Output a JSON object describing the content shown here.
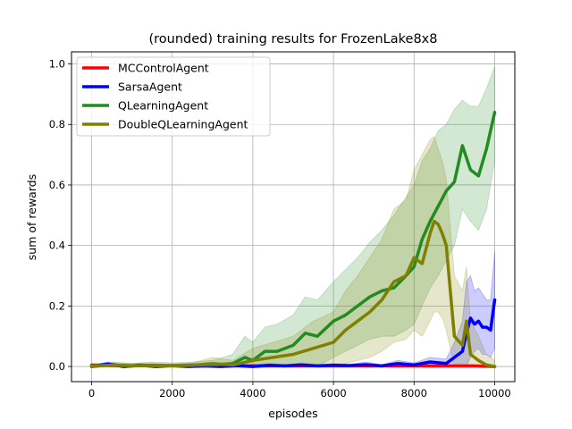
{
  "chart_data": {
    "type": "line",
    "title": "(rounded) training results for FrozenLake8x8",
    "xlabel": "episodes",
    "ylabel": "sum of rewards",
    "xlim": [
      -500,
      10500
    ],
    "ylim": [
      -0.05,
      1.04
    ],
    "xticks": [
      0,
      2000,
      4000,
      6000,
      8000,
      10000
    ],
    "yticks": [
      0.0,
      0.2,
      0.4,
      0.6,
      0.8,
      1.0
    ],
    "xtick_labels": [
      "0",
      "2000",
      "4000",
      "6000",
      "8000",
      "10000"
    ],
    "ytick_labels": [
      "0.0",
      "0.2",
      "0.4",
      "0.6",
      "0.8",
      "1.0"
    ],
    "grid": true,
    "legend_position": "upper-left",
    "series": [
      {
        "name": "MCControlAgent",
        "color": "#ff0000",
        "x": [
          0,
          500,
          1000,
          1500,
          2000,
          2500,
          3000,
          3500,
          4000,
          4500,
          5000,
          5500,
          6000,
          6500,
          7000,
          7500,
          8000,
          8500,
          9000,
          9500,
          10000
        ],
        "y": [
          0.005,
          0.003,
          0.002,
          0.004,
          0.002,
          0.002,
          0.002,
          0.002,
          0.002,
          0.002,
          0.002,
          0.002,
          0.002,
          0.002,
          0.002,
          0.002,
          0.002,
          0.002,
          0.002,
          0.002,
          0.0
        ],
        "upper": [],
        "lower": []
      },
      {
        "name": "SarsaAgent",
        "color": "#0000ff",
        "x": [
          0,
          400,
          800,
          1200,
          1600,
          2000,
          2400,
          2800,
          3200,
          3600,
          4000,
          4400,
          4800,
          5200,
          5600,
          6000,
          6400,
          6800,
          7200,
          7600,
          8000,
          8400,
          8800,
          9000,
          9200,
          9300,
          9400,
          9500,
          9600,
          9700,
          9800,
          9900,
          10000
        ],
        "y": [
          0.0,
          0.008,
          0.0,
          0.004,
          0.0,
          0.003,
          0.0,
          0.002,
          0.0,
          0.003,
          0.0,
          0.004,
          0.002,
          0.005,
          0.002,
          0.004,
          0.003,
          0.006,
          0.002,
          0.01,
          0.005,
          0.015,
          0.01,
          0.03,
          0.05,
          0.11,
          0.16,
          0.14,
          0.15,
          0.13,
          0.13,
          0.12,
          0.22
        ],
        "upper": [
          0.005,
          0.015,
          0.005,
          0.01,
          0.005,
          0.008,
          0.005,
          0.006,
          0.005,
          0.008,
          0.005,
          0.01,
          0.006,
          0.012,
          0.006,
          0.01,
          0.008,
          0.015,
          0.006,
          0.02,
          0.012,
          0.03,
          0.025,
          0.08,
          0.15,
          0.28,
          0.3,
          0.25,
          0.26,
          0.24,
          0.22,
          0.22,
          0.38
        ],
        "lower": [
          0.0,
          0.0,
          0.0,
          0.0,
          0.0,
          0.0,
          0.0,
          0.0,
          0.0,
          0.0,
          0.0,
          0.0,
          0.0,
          0.0,
          0.0,
          0.0,
          0.0,
          0.0,
          0.0,
          0.0,
          0.0,
          0.0,
          0.0,
          0.0,
          0.0,
          0.0,
          0.03,
          0.05,
          0.06,
          0.04,
          0.04,
          0.03,
          0.06
        ]
      },
      {
        "name": "QLearningAgent",
        "color": "#228b22",
        "x": [
          0,
          500,
          1000,
          1500,
          2000,
          2500,
          3000,
          3500,
          3800,
          4000,
          4300,
          4600,
          5000,
          5300,
          5600,
          6000,
          6300,
          6600,
          6900,
          7200,
          7500,
          7800,
          8000,
          8200,
          8400,
          8600,
          8800,
          9000,
          9200,
          9400,
          9600,
          9800,
          10000
        ],
        "y": [
          0.0,
          0.005,
          0.002,
          0.004,
          0.003,
          0.005,
          0.005,
          0.01,
          0.03,
          0.02,
          0.05,
          0.05,
          0.07,
          0.11,
          0.1,
          0.15,
          0.17,
          0.2,
          0.23,
          0.25,
          0.26,
          0.3,
          0.33,
          0.42,
          0.48,
          0.53,
          0.58,
          0.61,
          0.73,
          0.65,
          0.63,
          0.72,
          0.84
        ],
        "upper": [
          0.005,
          0.015,
          0.01,
          0.015,
          0.012,
          0.015,
          0.02,
          0.04,
          0.1,
          0.08,
          0.13,
          0.14,
          0.17,
          0.23,
          0.22,
          0.28,
          0.32,
          0.36,
          0.41,
          0.45,
          0.5,
          0.56,
          0.6,
          0.68,
          0.72,
          0.78,
          0.8,
          0.85,
          0.88,
          0.86,
          0.86,
          0.92,
          0.99
        ],
        "lower": [
          0.0,
          0.0,
          0.0,
          0.0,
          0.0,
          0.0,
          0.0,
          0.0,
          0.0,
          0.0,
          0.0,
          0.0,
          0.0,
          0.01,
          0.0,
          0.03,
          0.05,
          0.07,
          0.09,
          0.1,
          0.1,
          0.12,
          0.14,
          0.2,
          0.26,
          0.3,
          0.35,
          0.4,
          0.52,
          0.48,
          0.45,
          0.52,
          0.68
        ]
      },
      {
        "name": "DoubleQLearningAgent",
        "color": "#808000",
        "x": [
          0,
          500,
          1000,
          1500,
          2000,
          2500,
          3000,
          3500,
          4000,
          4500,
          5000,
          5500,
          6000,
          6300,
          6600,
          6900,
          7200,
          7500,
          7800,
          8000,
          8200,
          8400,
          8500,
          8600,
          8700,
          8800,
          9000,
          9200,
          9300,
          9400,
          9600,
          9800,
          10000
        ],
        "y": [
          0.002,
          0.004,
          0.003,
          0.003,
          0.002,
          0.004,
          0.01,
          0.005,
          0.02,
          0.03,
          0.04,
          0.06,
          0.08,
          0.12,
          0.15,
          0.18,
          0.22,
          0.28,
          0.3,
          0.36,
          0.34,
          0.44,
          0.48,
          0.47,
          0.44,
          0.4,
          0.1,
          0.07,
          0.15,
          0.04,
          0.02,
          0.005,
          0.0
        ],
        "upper": [
          0.008,
          0.012,
          0.01,
          0.01,
          0.008,
          0.012,
          0.03,
          0.02,
          0.06,
          0.08,
          0.1,
          0.15,
          0.18,
          0.25,
          0.3,
          0.36,
          0.42,
          0.52,
          0.55,
          0.65,
          0.7,
          0.75,
          0.76,
          0.72,
          0.68,
          0.62,
          0.3,
          0.25,
          0.33,
          0.15,
          0.1,
          0.04,
          0.02
        ],
        "lower": [
          0.0,
          0.0,
          0.0,
          0.0,
          0.0,
          0.0,
          0.0,
          0.0,
          0.0,
          0.0,
          0.0,
          0.0,
          0.0,
          0.01,
          0.02,
          0.03,
          0.05,
          0.08,
          0.09,
          0.12,
          0.1,
          0.15,
          0.18,
          0.18,
          0.16,
          0.12,
          0.0,
          0.0,
          0.0,
          0.0,
          0.0,
          0.0,
          0.0
        ]
      }
    ]
  }
}
